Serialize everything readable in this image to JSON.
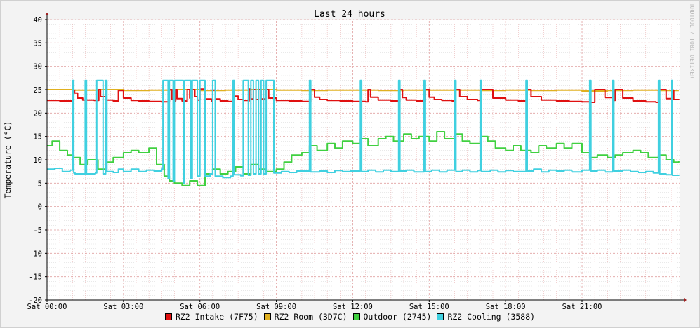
{
  "chart_data": {
    "type": "line",
    "title": "Last 24 hours",
    "ylabel": "Temperature (°C)",
    "watermark": "RRDTOOL / TOBI OETIKER",
    "ylim": [
      -20,
      40
    ],
    "yticks": [
      40,
      35,
      30,
      25,
      20,
      15,
      10,
      5,
      0,
      -5,
      -10,
      -15,
      -20
    ],
    "xlim_hours": [
      0,
      24.83
    ],
    "xticks": [
      {
        "hour": 0,
        "label": "Sat 00:00"
      },
      {
        "hour": 3,
        "label": "Sat 03:00"
      },
      {
        "hour": 6,
        "label": "Sat 06:00"
      },
      {
        "hour": 9,
        "label": "Sat 09:00"
      },
      {
        "hour": 12,
        "label": "Sat 12:00"
      },
      {
        "hour": 15,
        "label": "Sat 15:00"
      },
      {
        "hour": 18,
        "label": "Sat 18:00"
      },
      {
        "hour": 21,
        "label": "Sat 21:00"
      }
    ],
    "grid": true,
    "legend_position": "bottom",
    "series": [
      {
        "name": "RZ2 Intake (7F75)",
        "color": "#e01010",
        "x": [
          0.0,
          0.5,
          1.0,
          1.03,
          1.08,
          1.2,
          1.4,
          1.85,
          2.03,
          2.1,
          2.3,
          2.6,
          2.8,
          3.0,
          3.3,
          3.6,
          4.0,
          4.5,
          4.75,
          4.8,
          4.9,
          5.0,
          5.05,
          5.1,
          5.3,
          5.45,
          5.5,
          5.6,
          5.7,
          5.8,
          5.9,
          6.0,
          6.2,
          6.45,
          6.5,
          6.6,
          6.8,
          7.1,
          7.3,
          7.35,
          7.5,
          7.7,
          7.9,
          7.93,
          8.0,
          8.1,
          8.2,
          8.3,
          8.4,
          8.6,
          8.7,
          9.0,
          9.5,
          10.0,
          10.3,
          10.35,
          10.5,
          10.7,
          11.0,
          11.5,
          12.0,
          12.5,
          12.6,
          12.7,
          13.0,
          13.5,
          13.8,
          13.85,
          13.95,
          14.1,
          14.5,
          14.8,
          14.85,
          15.0,
          15.2,
          15.5,
          15.9,
          16.0,
          16.2,
          16.5,
          16.9,
          17.0,
          17.5,
          18.0,
          18.5,
          18.8,
          18.85,
          19.0,
          19.4,
          20.0,
          20.5,
          21.0,
          21.35,
          21.5,
          21.9,
          22.2,
          22.3,
          22.6,
          23.0,
          23.5,
          23.9,
          24.0,
          24.3,
          24.5,
          24.6,
          24.8
        ],
        "y": [
          22.7,
          22.6,
          22.4,
          24.9,
          24.3,
          23.2,
          22.8,
          22.7,
          25.0,
          23.5,
          22.8,
          22.6,
          24.8,
          23.2,
          22.7,
          22.6,
          22.5,
          22.4,
          22.4,
          25.0,
          23.0,
          22.6,
          25.0,
          23.1,
          22.6,
          22.5,
          25.0,
          23.2,
          25.0,
          23.5,
          22.8,
          25.1,
          23.0,
          22.6,
          24.9,
          23.0,
          22.6,
          22.5,
          25.0,
          23.6,
          22.9,
          22.7,
          22.6,
          25.1,
          23.0,
          25.0,
          22.9,
          25.0,
          23.0,
          25.0,
          23.2,
          22.7,
          22.6,
          22.5,
          22.4,
          25.0,
          23.4,
          22.9,
          22.7,
          22.6,
          22.5,
          22.4,
          25.0,
          23.4,
          22.8,
          22.6,
          22.5,
          25.0,
          23.3,
          22.8,
          22.6,
          22.5,
          25.0,
          23.4,
          22.9,
          22.7,
          22.6,
          25.0,
          23.5,
          22.9,
          22.7,
          25.0,
          23.2,
          22.8,
          22.6,
          22.4,
          25.0,
          23.5,
          22.8,
          22.6,
          22.5,
          22.4,
          22.3,
          25.0,
          23.3,
          22.7,
          25.0,
          23.2,
          22.6,
          22.4,
          22.3,
          25.0,
          23.1,
          24.9,
          22.9,
          22.8
        ]
      },
      {
        "name": "RZ2 Room (3D7C)",
        "color": "#e0b020",
        "x": [
          0.0,
          1.0,
          2.0,
          3.0,
          4.0,
          5.0,
          6.0,
          7.0,
          8.0,
          9.0,
          10.0,
          11.0,
          12.0,
          13.0,
          14.0,
          15.0,
          16.0,
          17.0,
          18.0,
          19.0,
          20.0,
          21.0,
          22.0,
          23.0,
          24.0,
          24.8
        ],
        "y": [
          25.0,
          24.9,
          25.0,
          24.8,
          24.9,
          25.0,
          24.8,
          24.9,
          25.0,
          24.9,
          24.8,
          24.9,
          24.9,
          24.8,
          24.9,
          24.9,
          24.9,
          24.8,
          24.9,
          24.8,
          24.9,
          24.7,
          24.8,
          24.9,
          24.8,
          24.8
        ]
      },
      {
        "name": "Outdoor (2745)",
        "color": "#40d040",
        "x": [
          0.0,
          0.2,
          0.5,
          0.8,
          1.0,
          1.3,
          1.6,
          2.0,
          2.3,
          2.6,
          3.0,
          3.3,
          3.6,
          4.0,
          4.3,
          4.6,
          4.8,
          5.0,
          5.3,
          5.6,
          5.9,
          6.2,
          6.5,
          6.8,
          7.1,
          7.4,
          7.7,
          8.0,
          8.3,
          8.6,
          9.0,
          9.3,
          9.6,
          10.0,
          10.3,
          10.6,
          11.0,
          11.3,
          11.6,
          12.0,
          12.3,
          12.6,
          13.0,
          13.3,
          13.6,
          14.0,
          14.3,
          14.6,
          15.0,
          15.3,
          15.6,
          16.0,
          16.3,
          16.6,
          17.0,
          17.3,
          17.6,
          18.0,
          18.3,
          18.6,
          19.0,
          19.3,
          19.6,
          20.0,
          20.3,
          20.6,
          21.0,
          21.3,
          21.6,
          22.0,
          22.3,
          22.6,
          23.0,
          23.3,
          23.6,
          24.0,
          24.3,
          24.6,
          24.8
        ],
        "y": [
          13.0,
          14.0,
          12.0,
          11.0,
          10.5,
          9.0,
          10.0,
          8.0,
          9.5,
          10.5,
          11.5,
          12.0,
          11.5,
          12.5,
          9.0,
          6.5,
          5.5,
          5.0,
          4.5,
          5.5,
          4.5,
          7.0,
          8.0,
          7.0,
          7.5,
          8.5,
          7.0,
          9.0,
          8.0,
          7.5,
          8.0,
          9.5,
          11.0,
          11.5,
          13.0,
          12.0,
          13.5,
          12.5,
          14.0,
          13.5,
          14.5,
          13.0,
          14.5,
          15.0,
          14.0,
          15.5,
          14.5,
          15.0,
          14.0,
          16.0,
          14.5,
          15.5,
          14.0,
          13.5,
          15.0,
          14.0,
          12.5,
          12.0,
          13.0,
          12.0,
          11.5,
          13.0,
          12.5,
          13.5,
          12.5,
          13.5,
          11.5,
          10.5,
          11.0,
          10.5,
          11.0,
          11.5,
          12.0,
          11.5,
          10.5,
          11.0,
          10.0,
          9.5,
          9.7
        ]
      },
      {
        "name": "RZ2 Cooling (3588)",
        "color": "#40d0e0",
        "x": [
          0.0,
          0.3,
          0.6,
          0.9,
          1.0,
          1.05,
          1.1,
          1.5,
          1.55,
          1.9,
          1.95,
          2.2,
          2.3,
          2.35,
          2.6,
          2.8,
          3.0,
          3.3,
          3.6,
          3.9,
          4.2,
          4.5,
          4.55,
          4.75,
          4.8,
          4.95,
          5.0,
          5.35,
          5.4,
          5.65,
          5.7,
          5.9,
          6.0,
          6.2,
          6.4,
          6.5,
          6.6,
          6.9,
          7.2,
          7.3,
          7.35,
          7.6,
          7.7,
          7.9,
          8.0,
          8.1,
          8.2,
          8.3,
          8.4,
          8.5,
          8.6,
          8.9,
          9.2,
          9.5,
          9.8,
          10.3,
          10.35,
          10.7,
          11.0,
          11.3,
          11.6,
          11.9,
          12.3,
          12.35,
          12.6,
          12.9,
          13.2,
          13.5,
          13.8,
          13.85,
          14.1,
          14.4,
          14.8,
          14.85,
          15.1,
          15.4,
          15.7,
          16.0,
          16.05,
          16.3,
          16.6,
          16.9,
          17.0,
          17.05,
          17.4,
          17.7,
          18.0,
          18.3,
          18.8,
          18.85,
          19.1,
          19.4,
          19.7,
          20.0,
          20.3,
          20.6,
          21.0,
          21.3,
          21.35,
          21.6,
          21.9,
          22.2,
          22.25,
          22.6,
          22.9,
          23.2,
          23.5,
          23.8,
          24.0,
          24.05,
          24.3,
          24.5,
          24.55,
          24.8
        ],
        "y": [
          8.0,
          8.2,
          7.5,
          7.8,
          27.0,
          7.2,
          7.0,
          27.0,
          7.0,
          7.2,
          27.0,
          7.0,
          27.0,
          7.5,
          7.3,
          8.0,
          7.5,
          8.0,
          7.5,
          7.8,
          7.6,
          8.0,
          27.0,
          6.0,
          27.0,
          5.5,
          27.0,
          5.0,
          27.0,
          6.0,
          27.0,
          6.5,
          27.0,
          6.5,
          7.0,
          27.0,
          6.5,
          6.2,
          6.5,
          27.0,
          6.8,
          6.6,
          27.0,
          6.7,
          27.0,
          7.0,
          27.0,
          7.0,
          27.0,
          7.0,
          27.0,
          7.2,
          7.5,
          7.3,
          7.6,
          27.0,
          7.4,
          7.6,
          7.3,
          7.7,
          7.5,
          7.6,
          27.0,
          7.5,
          7.8,
          7.4,
          7.8,
          7.5,
          27.0,
          7.6,
          7.8,
          7.4,
          27.0,
          7.5,
          7.8,
          7.4,
          7.8,
          27.0,
          7.5,
          7.8,
          7.4,
          7.7,
          27.0,
          7.5,
          7.8,
          7.4,
          7.7,
          7.5,
          27.0,
          7.6,
          8.0,
          7.4,
          7.8,
          7.6,
          7.8,
          7.4,
          7.8,
          27.0,
          7.6,
          7.8,
          7.4,
          27.0,
          7.6,
          7.8,
          7.5,
          7.3,
          7.5,
          7.2,
          27.0,
          7.0,
          6.8,
          27.0,
          6.7,
          6.8
        ]
      }
    ]
  }
}
